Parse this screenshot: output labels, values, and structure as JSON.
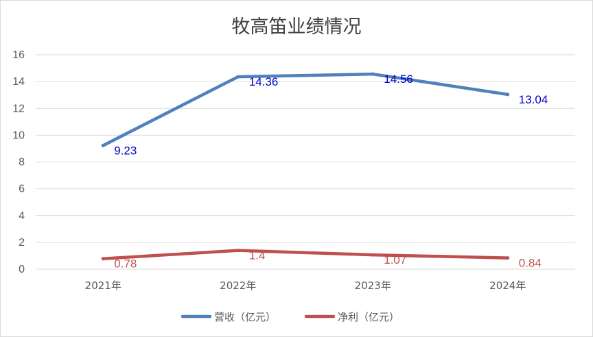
{
  "chart_data": {
    "type": "line",
    "title": "牧高笛业绩情况",
    "categories": [
      "2021年",
      "2022年",
      "2023年",
      "2024年"
    ],
    "ylim": [
      0,
      16
    ],
    "yticks": [
      "0",
      "2",
      "4",
      "6",
      "8",
      "10",
      "12",
      "14",
      "16"
    ],
    "grid": true,
    "legend_position": "bottom",
    "series": [
      {
        "name": "营收（亿元）",
        "values": [
          9.23,
          14.36,
          14.56,
          13.04
        ],
        "labels": [
          "9.23",
          "14.36",
          "14.56",
          "13.04"
        ],
        "color": "#4f81bd",
        "label_color": "#0000cc"
      },
      {
        "name": "净利（亿元）",
        "values": [
          0.78,
          1.4,
          1.07,
          0.84
        ],
        "labels": [
          "0.78",
          "1.4",
          "1.07",
          "0.84"
        ],
        "color": "#c0504d",
        "label_color": "#c0504d"
      }
    ]
  }
}
